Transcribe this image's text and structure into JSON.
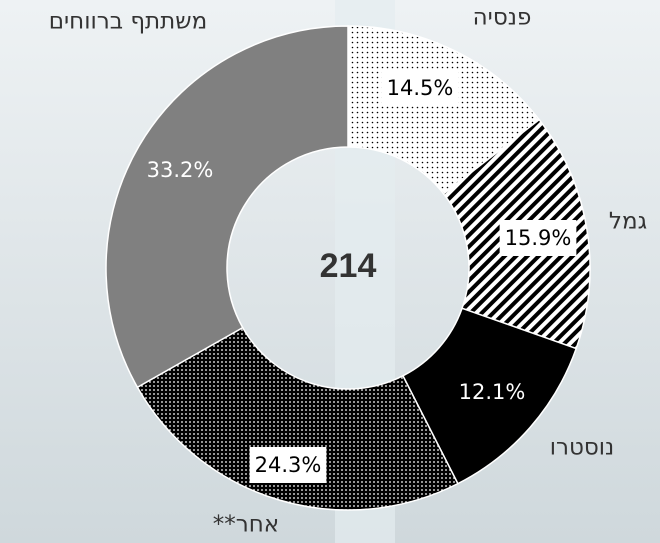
{
  "chart_data": {
    "type": "donut",
    "center_label": "214",
    "categories": [
      "פנסיה",
      "גמל",
      "נוסטרו",
      "אחר**",
      "משתתף ברווחים"
    ],
    "values": [
      14.5,
      15.9,
      12.1,
      24.3,
      33.2
    ],
    "value_labels": [
      "14.5%",
      "15.9%",
      "12.1%",
      "24.3%",
      "33.2%"
    ]
  }
}
